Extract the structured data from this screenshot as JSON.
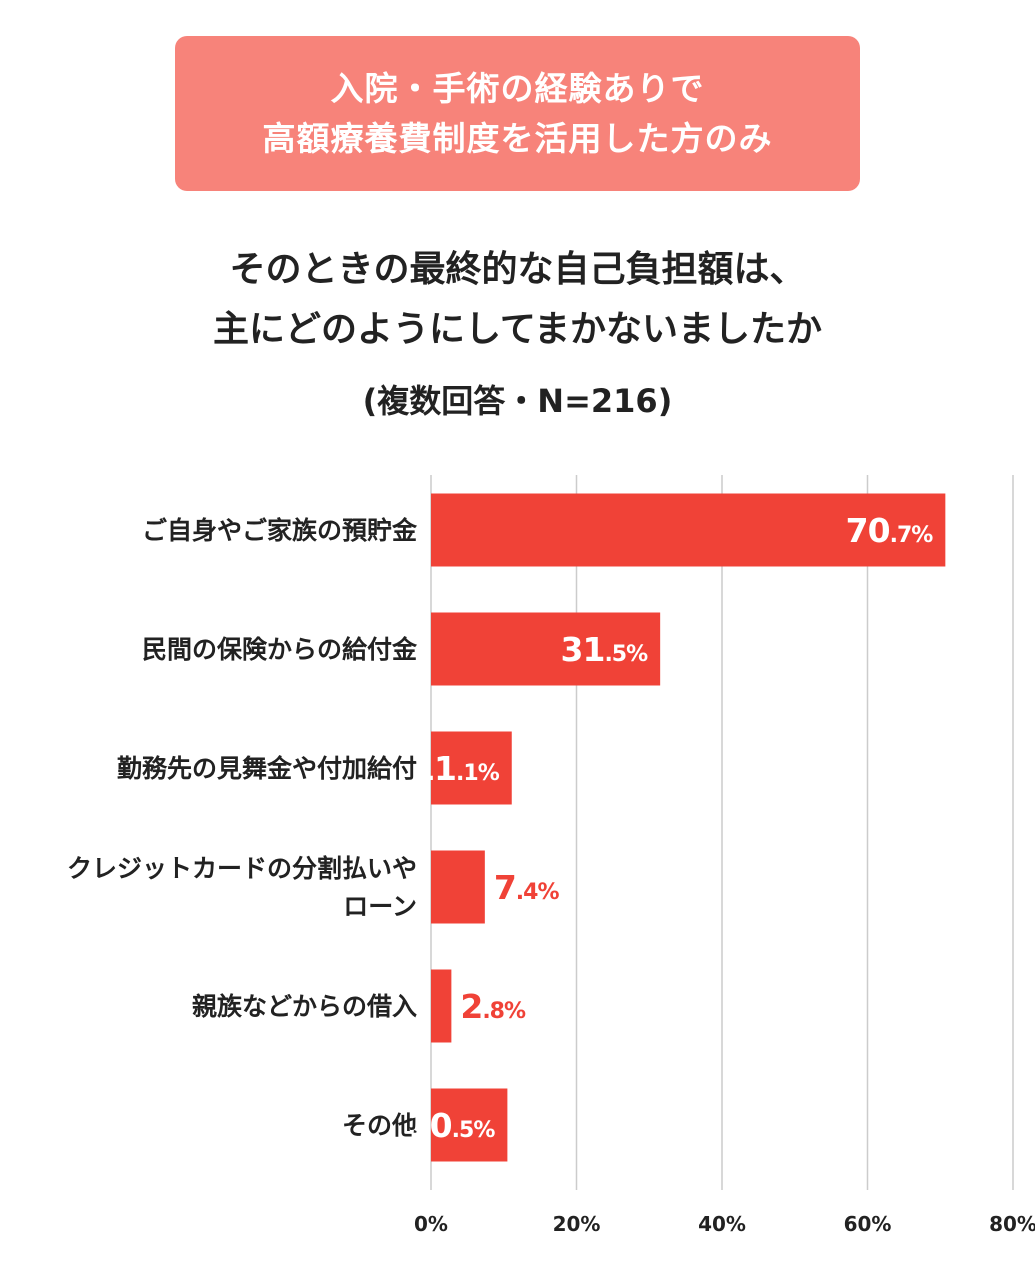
{
  "banner": {
    "line1": "入院・手術の経験ありで",
    "line2": "高額療養費制度を活用した方のみ",
    "color": "#f7837a"
  },
  "title": {
    "line1": "そのときの最終的な自己負担額は、",
    "line2": "主にどのようにしてまかないましたか",
    "sub": "(複数回答・N=216)"
  },
  "colors": {
    "bar": "#f04237",
    "inside_label": "#ffffff",
    "outside_label": "#f04237",
    "grid": "#cccccc"
  },
  "chart_data": {
    "type": "bar",
    "orientation": "horizontal",
    "categories": [
      [
        "ご自身やご家族の預貯金"
      ],
      [
        "民間の保険からの給付金"
      ],
      [
        "勤務先の見舞金や付加給付"
      ],
      [
        "クレジットカードの分割払いや",
        "ローン"
      ],
      [
        "親族などからの借入"
      ],
      [
        "その他"
      ]
    ],
    "values": [
      70.7,
      31.5,
      11.1,
      7.4,
      2.8,
      10.5
    ],
    "value_labels": [
      {
        "int": "70",
        "dec": ".7%"
      },
      {
        "int": "31",
        "dec": ".5%"
      },
      {
        "int": "11",
        "dec": ".1%"
      },
      {
        "int": "7",
        "dec": ".4%"
      },
      {
        "int": "2",
        "dec": ".8%"
      },
      {
        "int": "10",
        "dec": ".5%"
      }
    ],
    "xlim": [
      0,
      80
    ],
    "xticks": [
      "0%",
      "20%",
      "40%",
      "60%",
      "80%"
    ],
    "xtick_values": [
      0,
      20,
      40,
      60,
      80
    ],
    "grid": true
  }
}
